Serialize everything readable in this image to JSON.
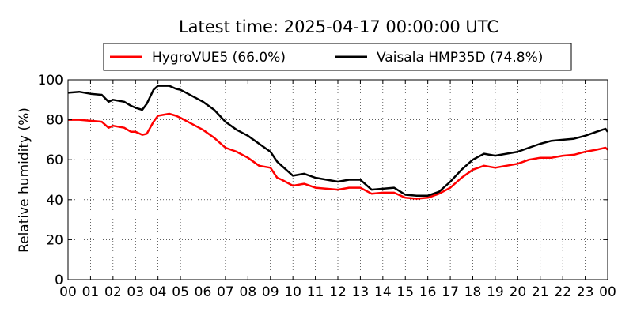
{
  "chart_data": {
    "type": "line",
    "title": "Latest time: 2025-04-17 00:00:00 UTC",
    "xlabel": "",
    "ylabel": "Relative humidity (%)",
    "xlim": [
      0,
      24
    ],
    "ylim": [
      0,
      100
    ],
    "grid": true,
    "legend_position": "top-center",
    "x_tick_labels": [
      "00",
      "01",
      "02",
      "03",
      "04",
      "05",
      "06",
      "07",
      "08",
      "09",
      "10",
      "11",
      "12",
      "13",
      "14",
      "15",
      "16",
      "17",
      "18",
      "19",
      "20",
      "21",
      "22",
      "23",
      "00"
    ],
    "y_ticks": [
      0,
      20,
      40,
      60,
      80,
      100
    ],
    "series": [
      {
        "name": "HygroVUE5 (66.0%)",
        "color": "#ff0000",
        "x": [
          0,
          0.5,
          1,
          1.5,
          1.8,
          2,
          2.5,
          2.8,
          3,
          3.3,
          3.5,
          3.8,
          4,
          4.5,
          4.8,
          5,
          5.5,
          6,
          6.5,
          7,
          7.5,
          8,
          8.5,
          9,
          9.3,
          9.5,
          10,
          10.5,
          11,
          11.5,
          12,
          12.5,
          13,
          13.5,
          14,
          14.5,
          15,
          15.5,
          16,
          16.5,
          17,
          17.5,
          18,
          18.5,
          19,
          19.5,
          20,
          20.5,
          21,
          21.5,
          22,
          22.5,
          23,
          23.5,
          23.9,
          24
        ],
        "y": [
          80,
          80,
          79.5,
          79,
          76,
          77,
          76,
          74,
          74,
          72.5,
          73,
          79,
          82,
          83,
          82,
          81,
          78,
          75,
          71,
          66,
          64,
          61,
          57,
          56,
          51,
          50,
          47,
          48,
          46,
          45.5,
          45,
          46,
          46,
          43,
          43.5,
          43.5,
          41,
          40.5,
          41,
          43,
          46,
          51,
          55,
          57,
          56,
          57,
          58,
          60,
          61,
          61,
          62,
          62.5,
          64,
          65,
          66,
          65
        ]
      },
      {
        "name": "Vaisala HMP35D (74.8%)",
        "color": "#000000",
        "x": [
          0,
          0.5,
          1,
          1.5,
          1.8,
          2,
          2.5,
          2.8,
          3,
          3.3,
          3.5,
          3.8,
          4,
          4.5,
          4.8,
          5,
          5.5,
          6,
          6.5,
          7,
          7.5,
          8,
          8.5,
          9,
          9.3,
          9.5,
          10,
          10.5,
          11,
          11.5,
          12,
          12.5,
          13,
          13.5,
          14,
          14.5,
          15,
          15.5,
          16,
          16.5,
          17,
          17.5,
          18,
          18.5,
          19,
          19.5,
          20,
          20.5,
          21,
          21.5,
          22,
          22.5,
          23,
          23.5,
          23.9,
          24
        ],
        "y": [
          93.5,
          94,
          93,
          92.5,
          89,
          90,
          89,
          87,
          86,
          85,
          88,
          95,
          97,
          97,
          95.5,
          95,
          92,
          89,
          85,
          79,
          75,
          72,
          68,
          64,
          59,
          57,
          52,
          53,
          51,
          50,
          49,
          50,
          50,
          45,
          45.5,
          46,
          42.5,
          42,
          42,
          44,
          49,
          55,
          60,
          63,
          62,
          63,
          64,
          66,
          68,
          69.5,
          70,
          70.5,
          72,
          74,
          75.5,
          74
        ]
      }
    ]
  }
}
